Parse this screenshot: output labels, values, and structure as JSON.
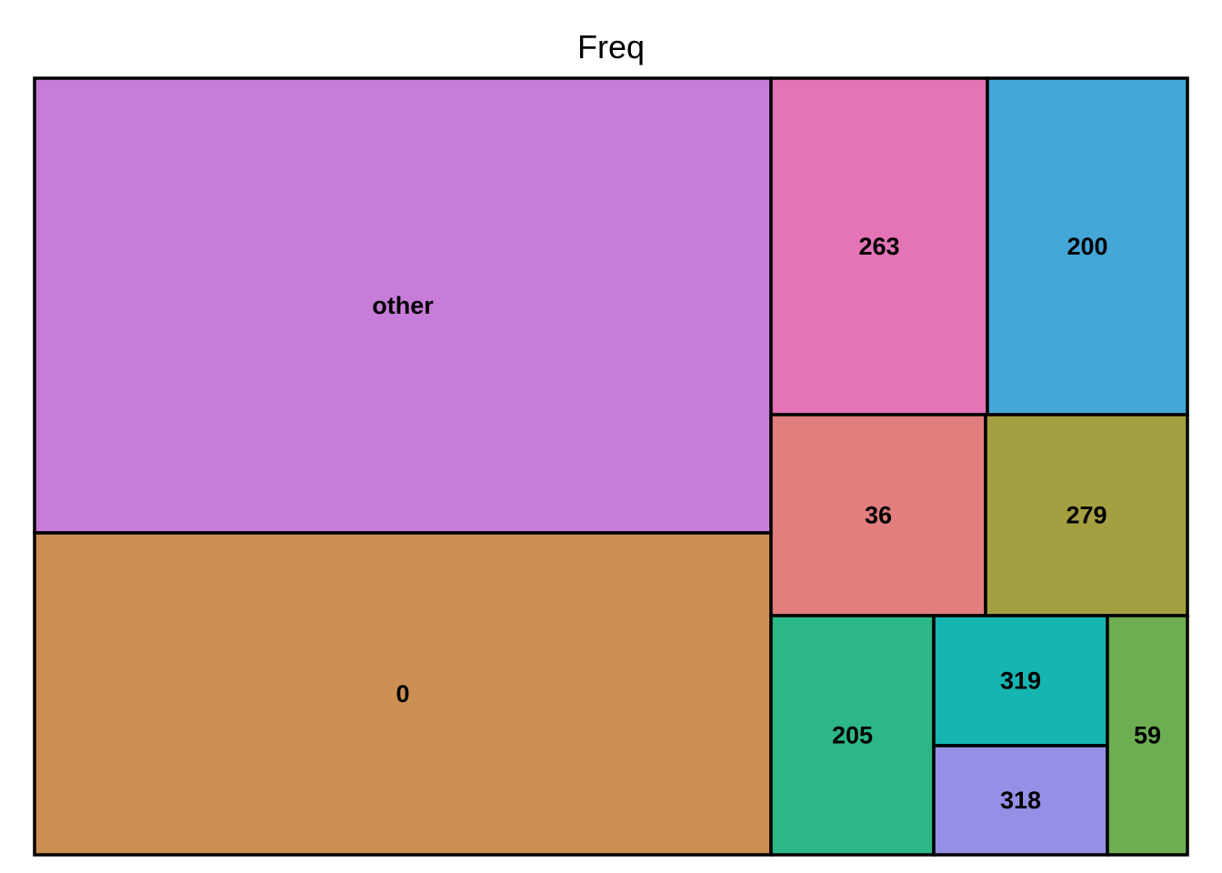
{
  "chart_data": {
    "type": "treemap",
    "title": "Freq",
    "tiles": [
      {
        "label": "other",
        "color": "#c77cd9"
      },
      {
        "label": "0",
        "color": "#cb8e53"
      },
      {
        "label": "263",
        "color": "#e374b5"
      },
      {
        "label": "200",
        "color": "#44a7d8"
      },
      {
        "label": "36",
        "color": "#e37e7e"
      },
      {
        "label": "279",
        "color": "#a4a042"
      },
      {
        "label": "205",
        "color": "#2cb886"
      },
      {
        "label": "319",
        "color": "#16b5b2"
      },
      {
        "label": "318",
        "color": "#9490e6"
      },
      {
        "label": "59",
        "color": "#6dae53"
      }
    ]
  }
}
